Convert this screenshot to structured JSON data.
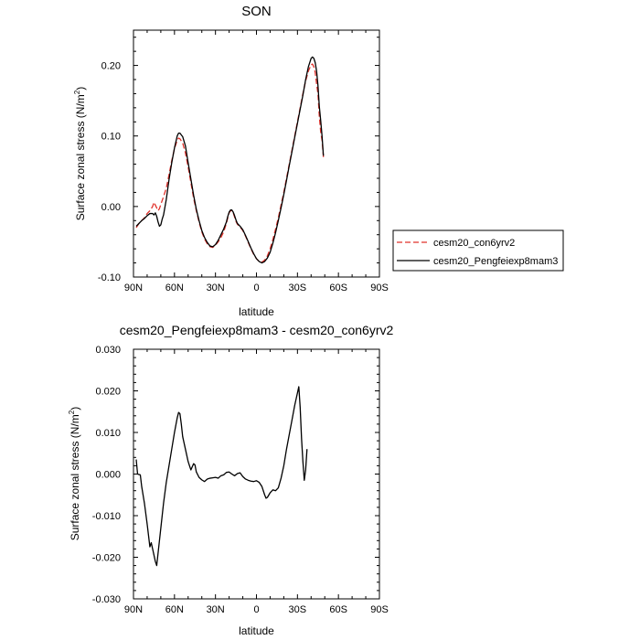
{
  "chart_data": [
    {
      "type": "line",
      "title": "SON",
      "xlabel": "latitude",
      "ylabel": "Surface zonal stress (N/m",
      "ylabel_sup": "2",
      "ylabel_end": ")",
      "xlim": [
        90,
        -90
      ],
      "ylim": [
        -0.1,
        0.25
      ],
      "x_ticks": [
        90,
        60,
        30,
        0,
        -30,
        -60,
        -90
      ],
      "x_tick_labels": [
        "90N",
        "60N",
        "30N",
        "0",
        "30S",
        "60S",
        "90S"
      ],
      "y_ticks": [
        -0.1,
        0.0,
        0.1,
        0.2
      ],
      "y_tick_labels": [
        "-0.10",
        "0.00",
        "0.10",
        "0.20"
      ],
      "legend": {
        "placement": "outside-right"
      },
      "series": [
        {
          "name": "cesm20_con6yrv2",
          "color": "#e0302a",
          "dash": "dashed",
          "points": [
            [
              88,
              -0.03
            ],
            [
              86,
              -0.024
            ],
            [
              84,
              -0.02
            ],
            [
              82,
              -0.016
            ],
            [
              80,
              -0.01
            ],
            [
              78,
              -0.006
            ],
            [
              76,
              0.0
            ],
            [
              75,
              0.006
            ],
            [
              74,
              0.002
            ],
            [
              73,
              -0.002
            ],
            [
              72,
              -0.006
            ],
            [
              71,
              -0.003
            ],
            [
              70,
              0.003
            ],
            [
              68,
              0.014
            ],
            [
              66,
              0.026
            ],
            [
              64,
              0.045
            ],
            [
              62,
              0.065
            ],
            [
              60,
              0.082
            ],
            [
              58,
              0.094
            ],
            [
              57,
              0.097
            ],
            [
              56,
              0.096
            ],
            [
              54,
              0.09
            ],
            [
              52,
              0.076
            ],
            [
              50,
              0.056
            ],
            [
              48,
              0.034
            ],
            [
              46,
              0.012
            ],
            [
              44,
              -0.006
            ],
            [
              42,
              -0.022
            ],
            [
              40,
              -0.036
            ],
            [
              38,
              -0.046
            ],
            [
              36,
              -0.053
            ],
            [
              34,
              -0.057
            ],
            [
              32,
              -0.058
            ],
            [
              30,
              -0.055
            ],
            [
              28,
              -0.05
            ],
            [
              26,
              -0.044
            ],
            [
              24,
              -0.036
            ],
            [
              22,
              -0.024
            ],
            [
              21,
              -0.016
            ],
            [
              20,
              -0.009
            ],
            [
              19,
              -0.006
            ],
            [
              18,
              -0.006
            ],
            [
              17,
              -0.009
            ],
            [
              16,
              -0.015
            ],
            [
              15,
              -0.021
            ],
            [
              14,
              -0.025
            ],
            [
              12,
              -0.029
            ],
            [
              10,
              -0.034
            ],
            [
              8,
              -0.042
            ],
            [
              6,
              -0.051
            ],
            [
              4,
              -0.06
            ],
            [
              2,
              -0.068
            ],
            [
              0,
              -0.074
            ],
            [
              -2,
              -0.078
            ],
            [
              -4,
              -0.079
            ],
            [
              -6,
              -0.076
            ],
            [
              -8,
              -0.07
            ],
            [
              -10,
              -0.06
            ],
            [
              -12,
              -0.047
            ],
            [
              -14,
              -0.032
            ],
            [
              -16,
              -0.016
            ],
            [
              -18,
              0.002
            ],
            [
              -20,
              0.02
            ],
            [
              -22,
              0.04
            ],
            [
              -24,
              0.06
            ],
            [
              -26,
              0.08
            ],
            [
              -28,
              0.1
            ],
            [
              -30,
              0.12
            ],
            [
              -32,
              0.14
            ],
            [
              -34,
              0.16
            ],
            [
              -36,
              0.178
            ],
            [
              -38,
              0.192
            ],
            [
              -40,
              0.201
            ],
            [
              -41,
              0.202
            ],
            [
              -42,
              0.198
            ],
            [
              -43,
              0.19
            ],
            [
              -44,
              0.174
            ],
            [
              -45,
              0.16
            ],
            [
              -46,
              0.128
            ],
            [
              -47,
              0.106
            ],
            [
              -48,
              0.094
            ],
            [
              -49,
              0.07
            ]
          ]
        },
        {
          "name": "cesm20_Pengfeiexp8mam3",
          "color": "#000000",
          "dash": "solid",
          "points": [
            [
              88,
              -0.028
            ],
            [
              86,
              -0.024
            ],
            [
              84,
              -0.02
            ],
            [
              82,
              -0.017
            ],
            [
              80,
              -0.013
            ],
            [
              78,
              -0.01
            ],
            [
              76,
              -0.01
            ],
            [
              75,
              -0.012
            ],
            [
              74,
              -0.009
            ],
            [
              73,
              -0.014
            ],
            [
              72,
              -0.022
            ],
            [
              71,
              -0.028
            ],
            [
              70,
              -0.026
            ],
            [
              69,
              -0.018
            ],
            [
              68,
              -0.012
            ],
            [
              66,
              0.01
            ],
            [
              64,
              0.038
            ],
            [
              62,
              0.062
            ],
            [
              60,
              0.083
            ],
            [
              58,
              0.1
            ],
            [
              57,
              0.104
            ],
            [
              56,
              0.104
            ],
            [
              54,
              0.099
            ],
            [
              52,
              0.086
            ],
            [
              50,
              0.062
            ],
            [
              48,
              0.039
            ],
            [
              46,
              0.016
            ],
            [
              44,
              -0.004
            ],
            [
              42,
              -0.02
            ],
            [
              40,
              -0.034
            ],
            [
              38,
              -0.044
            ],
            [
              36,
              -0.051
            ],
            [
              34,
              -0.056
            ],
            [
              32,
              -0.057
            ],
            [
              30,
              -0.054
            ],
            [
              28,
              -0.048
            ],
            [
              26,
              -0.04
            ],
            [
              24,
              -0.032
            ],
            [
              22,
              -0.022
            ],
            [
              21,
              -0.014
            ],
            [
              20,
              -0.008
            ],
            [
              19,
              -0.005
            ],
            [
              18,
              -0.005
            ],
            [
              17,
              -0.008
            ],
            [
              16,
              -0.013
            ],
            [
              15,
              -0.019
            ],
            [
              14,
              -0.024
            ],
            [
              12,
              -0.028
            ],
            [
              10,
              -0.033
            ],
            [
              8,
              -0.041
            ],
            [
              6,
              -0.05
            ],
            [
              4,
              -0.059
            ],
            [
              2,
              -0.067
            ],
            [
              0,
              -0.074
            ],
            [
              -2,
              -0.078
            ],
            [
              -4,
              -0.08
            ],
            [
              -6,
              -0.078
            ],
            [
              -8,
              -0.073
            ],
            [
              -10,
              -0.065
            ],
            [
              -12,
              -0.052
            ],
            [
              -14,
              -0.037
            ],
            [
              -16,
              -0.02
            ],
            [
              -18,
              -0.002
            ],
            [
              -20,
              0.017
            ],
            [
              -22,
              0.037
            ],
            [
              -24,
              0.058
            ],
            [
              -26,
              0.078
            ],
            [
              -28,
              0.098
            ],
            [
              -30,
              0.118
            ],
            [
              -32,
              0.138
            ],
            [
              -34,
              0.158
            ],
            [
              -36,
              0.18
            ],
            [
              -38,
              0.198
            ],
            [
              -40,
              0.21
            ],
            [
              -41,
              0.212
            ],
            [
              -42,
              0.21
            ],
            [
              -43,
              0.204
            ],
            [
              -44,
              0.192
            ],
            [
              -45,
              0.172
            ],
            [
              -46,
              0.142
            ],
            [
              -47,
              0.122
            ],
            [
              -48,
              0.1
            ],
            [
              -49,
              0.072
            ]
          ]
        }
      ]
    },
    {
      "type": "line",
      "title": "cesm20_Pengfeiexp8mam3 - cesm20_con6yrv2",
      "xlabel": "latitude",
      "ylabel": "Surface zonal stress (N/m",
      "ylabel_sup": "2",
      "ylabel_end": ")",
      "xlim": [
        90,
        -90
      ],
      "ylim": [
        -0.03,
        0.03
      ],
      "x_ticks": [
        90,
        60,
        30,
        0,
        -30,
        -60,
        -90
      ],
      "x_tick_labels": [
        "90N",
        "60N",
        "30N",
        "0",
        "30S",
        "60S",
        "90S"
      ],
      "y_ticks": [
        -0.03,
        -0.02,
        -0.01,
        0.0,
        0.01,
        0.02,
        0.03
      ],
      "y_tick_labels": [
        "-0.030",
        "-0.020",
        "-0.010",
        "0.000",
        "0.010",
        "0.020",
        "0.030"
      ],
      "series": [
        {
          "color": "#000000",
          "dash": "solid",
          "points": [
            [
              88,
              0.0035
            ],
            [
              87,
              0.0
            ],
            [
              86,
              -0.0001
            ],
            [
              85,
              -0.0002
            ],
            [
              84,
              -0.003
            ],
            [
              82,
              -0.007
            ],
            [
              80,
              -0.012
            ],
            [
              78,
              -0.0175
            ],
            [
              77,
              -0.0165
            ],
            [
              76,
              -0.018
            ],
            [
              74,
              -0.021
            ],
            [
              73,
              -0.022
            ],
            [
              72,
              -0.019
            ],
            [
              70,
              -0.013
            ],
            [
              68,
              -0.007
            ],
            [
              66,
              -0.002
            ],
            [
              64,
              0.002
            ],
            [
              62,
              0.006
            ],
            [
              60,
              0.01
            ],
            [
              58,
              0.0135
            ],
            [
              57,
              0.0148
            ],
            [
              56,
              0.0145
            ],
            [
              55,
              0.012
            ],
            [
              54,
              0.009
            ],
            [
              52,
              0.006
            ],
            [
              50,
              0.003
            ],
            [
              49,
              0.002
            ],
            [
              48,
              0.001
            ],
            [
              46,
              0.0025
            ],
            [
              45,
              0.0022
            ],
            [
              44,
              0.0005
            ],
            [
              42,
              -0.0008
            ],
            [
              40,
              -0.0014
            ],
            [
              38,
              -0.0018
            ],
            [
              36,
              -0.0012
            ],
            [
              34,
              -0.001
            ],
            [
              32,
              -0.0009
            ],
            [
              30,
              -0.0008
            ],
            [
              28,
              -0.001
            ],
            [
              26,
              -0.0004
            ],
            [
              24,
              -0.0002
            ],
            [
              22,
              0.0004
            ],
            [
              20,
              0.0005
            ],
            [
              18,
              0.0
            ],
            [
              16,
              -0.0004
            ],
            [
              14,
              0.0001
            ],
            [
              12,
              0.0003
            ],
            [
              10,
              -0.0006
            ],
            [
              8,
              -0.0012
            ],
            [
              6,
              -0.0015
            ],
            [
              4,
              -0.0017
            ],
            [
              2,
              -0.0018
            ],
            [
              0,
              -0.0016
            ],
            [
              -2,
              -0.002
            ],
            [
              -4,
              -0.003
            ],
            [
              -6,
              -0.005
            ],
            [
              -7,
              -0.0058
            ],
            [
              -8,
              -0.0056
            ],
            [
              -10,
              -0.0045
            ],
            [
              -12,
              -0.0038
            ],
            [
              -14,
              -0.004
            ],
            [
              -16,
              -0.0033
            ],
            [
              -18,
              -0.001
            ],
            [
              -20,
              0.002
            ],
            [
              -22,
              0.006
            ],
            [
              -24,
              0.0095
            ],
            [
              -26,
              0.013
            ],
            [
              -28,
              0.0165
            ],
            [
              -30,
              0.0195
            ],
            [
              -31,
              0.021
            ],
            [
              -32,
              0.016
            ],
            [
              -33,
              0.0085
            ],
            [
              -34,
              0.003
            ],
            [
              -35,
              -0.0015
            ],
            [
              -36,
              0.001
            ],
            [
              -37,
              0.006
            ]
          ]
        }
      ]
    }
  ]
}
